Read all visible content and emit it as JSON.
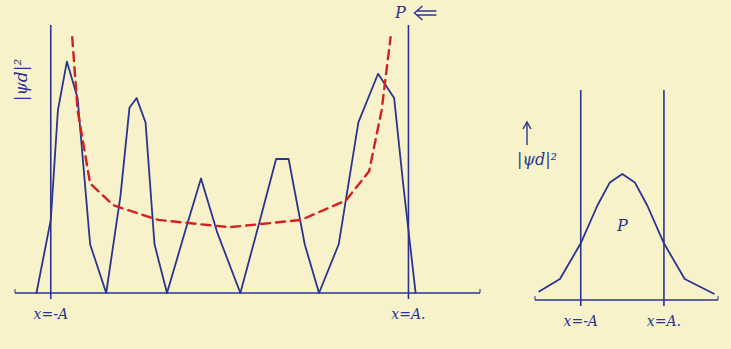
{
  "chart_data": [
    {
      "type": "line",
      "y_label": "|ψd|²",
      "xlim": [
        -1.2,
        1.4
      ],
      "ylim": [
        0,
        1.1
      ],
      "xticks": [
        {
          "value": -1,
          "label": "x=-A"
        },
        {
          "value": 1,
          "label": "x=A."
        }
      ],
      "tick_labels": "x",
      "annotations": [
        "P"
      ],
      "series": [
        {
          "color": "#2a3591",
          "line_style": "solid",
          "x": [
            -1.08,
            -1.0,
            -0.96,
            -0.91,
            -0.85,
            -0.78,
            -0.69,
            -0.61,
            -0.56,
            -0.52,
            -0.47,
            -0.42,
            -0.35,
            -0.25,
            -0.16,
            -0.07,
            0.06,
            0.17,
            0.26,
            0.33,
            0.42,
            0.5,
            0.61,
            0.72,
            0.83,
            0.92,
            0.97,
            1.04
          ],
          "values": [
            0,
            0.3,
            0.75,
            0.95,
            0.8,
            0.2,
            0,
            0.4,
            0.76,
            0.8,
            0.7,
            0.2,
            0,
            0.25,
            0.47,
            0.25,
            0,
            0.3,
            0.55,
            0.55,
            0.2,
            0,
            0.2,
            0.7,
            0.9,
            0.8,
            0.45,
            0
          ]
        },
        {
          "color": "#d42020",
          "line_style": "dashed",
          "x": [
            -0.88,
            -0.85,
            -0.78,
            -0.65,
            -0.4,
            0,
            0.4,
            0.65,
            0.78,
            0.85,
            0.9
          ],
          "values": [
            1.05,
            0.75,
            0.45,
            0.36,
            0.3,
            0.27,
            0.3,
            0.38,
            0.5,
            0.75,
            1.05
          ]
        }
      ]
    },
    {
      "type": "line",
      "y_label": "|ψd|²",
      "xlim": [
        -2.1,
        2.3
      ],
      "ylim": [
        0,
        1
      ],
      "xticks": [
        {
          "value": -1,
          "label": "x=-A"
        },
        {
          "value": 1,
          "label": "x=A."
        }
      ],
      "tick_labels": "x",
      "annotations": [
        "P"
      ],
      "series": [
        {
          "color": "#2a3591",
          "line_style": "solid",
          "x": [
            -2.0,
            -1.5,
            -1.0,
            -0.6,
            -0.3,
            0,
            0.3,
            0.6,
            1.0,
            1.5,
            2.2
          ],
          "values": [
            0.04,
            0.1,
            0.27,
            0.45,
            0.56,
            0.6,
            0.56,
            0.45,
            0.27,
            0.1,
            0.03
          ]
        }
      ]
    }
  ]
}
